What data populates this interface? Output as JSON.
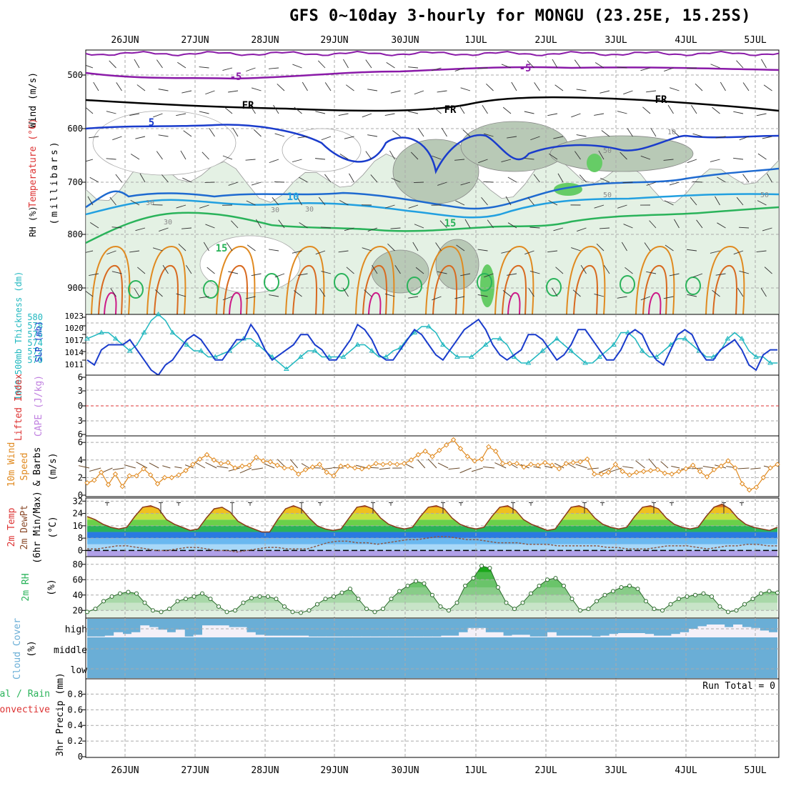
{
  "title": "GFS 0~10day 3-hourly for MONGU (23.25E, 15.25S)",
  "dates": [
    "26JUN",
    "27JUN",
    "28JUN",
    "29JUN",
    "30JUN",
    "1JUL",
    "2JUL",
    "3JUL",
    "4JUL",
    "5JUL"
  ],
  "colors": {
    "blue": "#1a3ccc",
    "cyan": "#22b8c0",
    "orange": "#e08a20",
    "purple": "#8a1aa8",
    "green": "#2ab35a",
    "rh_fill": "#bfe0c0",
    "cloud": "#6aaed6",
    "dash": "#aaaaaa",
    "red": "#dd3333",
    "mag": "#cc1a88"
  },
  "run_total": "Run Total = 0",
  "panels": {
    "upper": {
      "ylabel_wind": "Wind (m/s)",
      "ylabel_temp": "Temperature (°C)",
      "ylabel_mb": "(millibars)",
      "ylabel_rh": "RH (%)",
      "yticks": [
        "500",
        "600",
        "700",
        "800",
        "900"
      ],
      "contour_labels": [
        "-5",
        "-5",
        "FR",
        "FR",
        "FR",
        "5",
        "10",
        "15",
        "15",
        "10",
        "30",
        "30",
        "30",
        "30",
        "50",
        "50",
        "50"
      ]
    },
    "slp": {
      "ylabel_thick": "1000-500mb Thickness (dm)",
      "ylabel_slp": "SLP (mb)",
      "left_ticks": [
        "580",
        "578",
        "576",
        "574",
        "572",
        "570"
      ],
      "right_ticks": [
        "1023",
        "1020",
        "1017",
        "1014",
        "1011"
      ]
    },
    "cape": {
      "ylabel_li": "Lifted Index",
      "ylabel_cape": "CAPE (J/kg)",
      "ticks": [
        "6",
        "3",
        "0",
        "3",
        "6"
      ]
    },
    "wind": {
      "ylabel1": "10m Wind",
      "ylabel2": "Speed",
      "ylabel3": "& Barbs",
      "ylabel4": "(m/s)",
      "ticks": [
        "6",
        "4",
        "2",
        "0"
      ]
    },
    "temp": {
      "ylabel1": "2m Temp",
      "ylabel2": "2m DewPt",
      "ylabel3": "(6hr Min/Max)",
      "ylabel4": "(°C)",
      "ticks": [
        "32",
        "24",
        "16",
        "8",
        "0"
      ]
    },
    "rh": {
      "ylabel1": "2m RH",
      "ylabel2": "(%)",
      "ticks": [
        "80",
        "60",
        "40",
        "20"
      ]
    },
    "cloud": {
      "ylabel1": "Cloud Cover",
      "ylabel2": "(%)",
      "levels": [
        "high",
        "middle",
        "low"
      ]
    },
    "precip": {
      "ylabel1": "Total / Rain",
      "ylabel2": "Convective",
      "ylabel3": "3hr Precip (mm)",
      "ticks": [
        "0.8",
        "0.6",
        "0.4",
        "0.2",
        "0"
      ]
    }
  },
  "chart_data": [
    {
      "type": "line",
      "name": "1000-500mb Thickness & SLP",
      "x_step_hours": 3,
      "series": [
        {
          "name": "SLP (mb)",
          "values": [
            1014,
            1013,
            1016,
            1017,
            1017,
            1017,
            1018,
            1016,
            1014,
            1012,
            1011,
            1013,
            1014,
            1016,
            1018,
            1019,
            1018,
            1016,
            1014,
            1014,
            1016,
            1018,
            1018,
            1021,
            1019,
            1016,
            1014,
            1015,
            1016,
            1017,
            1019,
            1019,
            1017,
            1016,
            1014,
            1014,
            1016,
            1018,
            1021,
            1020,
            1018,
            1015,
            1014,
            1014,
            1016,
            1018,
            1020,
            1019,
            1017,
            1015,
            1014,
            1016,
            1018,
            1020,
            1021,
            1022,
            1020,
            1017,
            1015,
            1014,
            1015,
            1016,
            1019,
            1019,
            1018,
            1016,
            1014,
            1015,
            1017,
            1020,
            1020,
            1018,
            1016,
            1014,
            1014,
            1016,
            1019,
            1020,
            1019,
            1016,
            1014,
            1013,
            1016,
            1019,
            1020,
            1019,
            1016,
            1014,
            1014,
            1016,
            1017,
            1018,
            1016,
            1013,
            1012,
            1015,
            1016,
            1016
          ]
        },
        {
          "name": "Thickness (dm)",
          "values": [
            576,
            576.5,
            577,
            577,
            576,
            575,
            574,
            575,
            577,
            579,
            580,
            579,
            577,
            576,
            575,
            574,
            574,
            573,
            573,
            573.5,
            574,
            575,
            576,
            576,
            575,
            574,
            573,
            572,
            571,
            572,
            573,
            574,
            574,
            573,
            573,
            573,
            573,
            574,
            575,
            575,
            574,
            573,
            573,
            574,
            574.5,
            576,
            577,
            578,
            578,
            577,
            575,
            574,
            573,
            573,
            573,
            574,
            575,
            576,
            576,
            575,
            573,
            572,
            572,
            573,
            574,
            575,
            576,
            575,
            574,
            573,
            572,
            572,
            573,
            574,
            575,
            577,
            577,
            576,
            574,
            573,
            573,
            574,
            575,
            576,
            576,
            575,
            574,
            573,
            573,
            574,
            576,
            577,
            576,
            574,
            573,
            573,
            572,
            572
          ]
        }
      ],
      "ylim_left": [
        570,
        580
      ],
      "ylim_right": [
        1011,
        1023
      ]
    },
    {
      "type": "line",
      "name": "10m Wind Speed",
      "series": [
        {
          "name": "Wind speed (m/s)",
          "values": [
            1.4,
            1.7,
            2.6,
            1.2,
            2.4,
            1.0,
            2.2,
            2.2,
            3.0,
            2.3,
            1.3,
            2.0,
            2.0,
            2.3,
            2.8,
            3.5,
            4.1,
            4.6,
            4.0,
            3.6,
            3.7,
            3.1,
            3.3,
            3.4,
            4.3,
            3.9,
            3.8,
            3.4,
            3.1,
            3.1,
            2.4,
            2.9,
            3.2,
            3.5,
            2.6,
            2.2,
            3.3,
            3.3,
            3.1,
            3.0,
            3.2,
            3.6,
            3.5,
            3.6,
            3.5,
            3.6,
            4.0,
            4.6,
            5.0,
            4.4,
            5.1,
            5.7,
            6.3,
            5.3,
            4.4,
            3.9,
            4.1,
            5.5,
            5.0,
            3.6,
            3.6,
            3.6,
            3.2,
            3.5,
            3.4,
            3.7,
            3.4,
            3.0,
            3.6,
            3.7,
            3.8,
            4.1,
            2.4,
            2.4,
            2.6,
            3.5,
            2.7,
            2.3,
            2.6,
            2.7,
            2.8,
            2.9,
            2.5,
            2.4,
            2.7,
            3.0,
            3.4,
            2.7,
            2.1,
            2.9,
            3.3,
            3.9,
            3.1,
            1.3,
            0.6,
            0.9,
            2.0,
            3.1,
            3.5
          ]
        }
      ],
      "ylim": [
        0,
        6.5
      ]
    },
    {
      "type": "line",
      "name": "2m Temp & DewPt",
      "series": [
        {
          "name": "2m Temp (°C)",
          "values": [
            22,
            20,
            17,
            15,
            14,
            15,
            22,
            28,
            29,
            27,
            20,
            17,
            15,
            13,
            14,
            21,
            27,
            28,
            25,
            19,
            16,
            14,
            12,
            12,
            20,
            27,
            29,
            27,
            21,
            16,
            14,
            13,
            14,
            21,
            28,
            29,
            27,
            21,
            17,
            15,
            14,
            15,
            22,
            28,
            29,
            27,
            21,
            17,
            15,
            14,
            15,
            22,
            28,
            29,
            26,
            20,
            17,
            15,
            13,
            14,
            21,
            28,
            29,
            27,
            21,
            17,
            15,
            14,
            15,
            22,
            28,
            29,
            27,
            21,
            17,
            15,
            14,
            15,
            22,
            28,
            30,
            27,
            21,
            17,
            15,
            14,
            13,
            15
          ]
        },
        {
          "name": "2m DewPt (°C)",
          "values": [
            1,
            1,
            2,
            3,
            3,
            2,
            1,
            0,
            0,
            1,
            2,
            2,
            1,
            0,
            0,
            -1,
            0,
            1,
            2,
            2,
            1,
            1,
            1,
            3,
            5,
            6,
            6,
            5,
            5,
            4,
            5,
            6,
            7,
            7,
            8,
            9,
            9,
            8,
            7,
            7,
            6,
            5,
            5,
            5,
            4,
            4,
            4,
            3,
            3,
            3,
            3,
            3,
            2,
            2,
            1,
            1,
            1,
            2,
            3,
            3,
            3,
            2,
            1,
            2,
            3,
            3,
            4,
            4,
            3,
            3
          ]
        }
      ],
      "ylim": [
        -4,
        34
      ]
    },
    {
      "type": "line",
      "name": "2m RH",
      "series": [
        {
          "name": "2m RH (%)",
          "values": [
            18,
            22,
            32,
            38,
            42,
            44,
            42,
            30,
            20,
            18,
            22,
            32,
            35,
            38,
            42,
            35,
            25,
            18,
            20,
            30,
            36,
            38,
            38,
            35,
            25,
            18,
            17,
            20,
            28,
            35,
            38,
            43,
            48,
            35,
            22,
            18,
            22,
            35,
            45,
            52,
            58,
            55,
            40,
            25,
            20,
            30,
            52,
            62,
            78,
            75,
            50,
            30,
            22,
            30,
            42,
            52,
            60,
            62,
            52,
            35,
            20,
            22,
            32,
            40,
            45,
            50,
            52,
            48,
            32,
            22,
            20,
            28,
            35,
            38,
            40,
            42,
            38,
            25,
            18,
            20,
            28,
            35,
            42,
            45,
            43
          ]
        }
      ],
      "ylim": [
        10,
        90
      ]
    },
    {
      "type": "area",
      "name": "Cloud Cover",
      "series": [
        {
          "name": "high cloud (%)",
          "values": [
            5,
            5,
            10,
            30,
            20,
            30,
            70,
            60,
            45,
            30,
            45,
            5,
            15,
            70,
            70,
            70,
            60,
            60,
            30,
            15,
            10,
            10,
            10,
            10,
            10,
            5,
            5,
            5,
            5,
            5,
            5,
            5,
            5,
            5,
            5,
            5,
            5,
            5,
            5,
            5,
            10,
            10,
            30,
            55,
            55,
            30,
            30,
            10,
            15,
            15,
            5,
            5,
            30,
            10,
            10,
            10,
            10,
            5,
            10,
            20,
            25,
            25,
            25,
            20,
            10,
            10,
            20,
            30,
            50,
            65,
            75,
            75,
            60,
            75,
            60,
            55,
            40,
            30
          ]
        }
      ],
      "ylim": [
        0,
        100
      ]
    },
    {
      "type": "bar",
      "name": "3hr Precip",
      "series": [
        {
          "name": "3hr Precip (mm)",
          "values": [
            0
          ]
        }
      ],
      "ylim": [
        0,
        0.95
      ]
    }
  ]
}
